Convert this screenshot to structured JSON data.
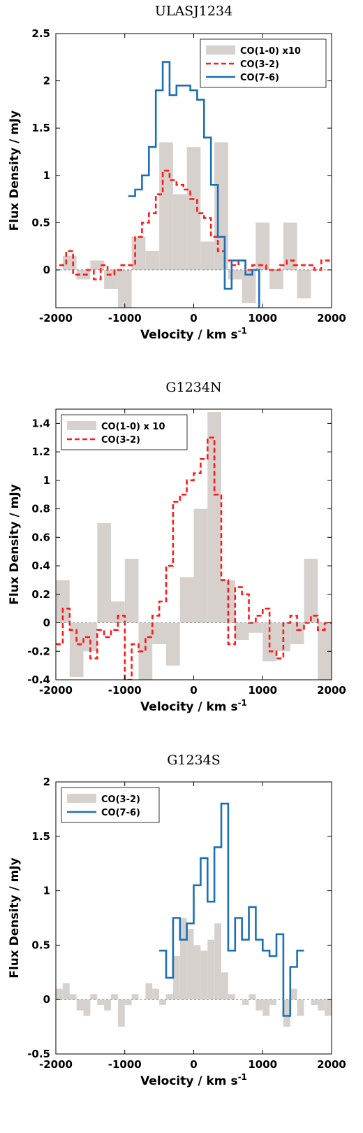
{
  "colors": {
    "fill_series": "#d6d1cc",
    "dashed_series": "#ff1a1a",
    "solid_series": "#1c6fb5",
    "zero_line": "#888888"
  },
  "chart_data": [
    {
      "type": "step",
      "title": "ULASJ1234",
      "xlabel": "Velocity / km s",
      "xlabel_sup": "-1",
      "ylabel": "Flux Density / mJy",
      "xlim": [
        -2000,
        2000
      ],
      "ylim": [
        -0.4,
        2.5
      ],
      "xticks": [
        -2000,
        -1000,
        0,
        1000,
        2000
      ],
      "xtick_labels": [
        "-2000",
        "-1000",
        "0",
        "1000",
        "2000"
      ],
      "yticks": [
        0,
        0.5,
        1,
        1.5,
        2,
        2.5
      ],
      "ytick_labels": [
        "0",
        "0.5",
        "1",
        "1.5",
        "2",
        "2.5"
      ],
      "legend_position": "top-right",
      "series": [
        {
          "name": "CO(1-0) x10",
          "style": "fill",
          "x": [
            -1800,
            -1600,
            -1400,
            -1200,
            -1000,
            -800,
            -600,
            -400,
            -200,
            0,
            200,
            400,
            600,
            800,
            1000,
            1200,
            1400,
            1600,
            1800
          ],
          "y": [
            0.15,
            -0.1,
            0.1,
            -0.2,
            -0.45,
            0.35,
            0.2,
            1.35,
            0.8,
            1.3,
            0.3,
            1.35,
            -0.1,
            -0.35,
            0.5,
            -0.2,
            0.5,
            -0.3,
            0.0
          ]
        },
        {
          "name": "CO(3-2)",
          "style": "dashed",
          "x": [
            -1900,
            -1800,
            -1700,
            -1600,
            -1500,
            -1400,
            -1300,
            -1200,
            -1100,
            -1000,
            -900,
            -800,
            -700,
            -600,
            -500,
            -400,
            -300,
            -200,
            -100,
            0,
            100,
            200,
            300,
            400,
            500,
            600,
            700,
            800,
            900,
            1000,
            1100,
            1200,
            1300,
            1400,
            1500,
            1600,
            1700,
            1800,
            1900,
            2000
          ],
          "y": [
            0.05,
            0.2,
            -0.05,
            -0.05,
            0.0,
            -0.1,
            0.05,
            -0.05,
            0.0,
            0.05,
            0.05,
            0.35,
            0.5,
            0.6,
            0.8,
            1.05,
            0.95,
            0.9,
            0.85,
            0.75,
            0.6,
            0.55,
            0.35,
            0.2,
            0.1,
            0.05,
            0.1,
            0.0,
            0.05,
            0.05,
            0.0,
            0.0,
            0.05,
            0.1,
            0.05,
            0.05,
            0.05,
            0.0,
            0.1,
            0.1
          ]
        },
        {
          "name": "CO(7-6)",
          "style": "solid",
          "x": [
            -900,
            -800,
            -700,
            -600,
            -500,
            -400,
            -300,
            -200,
            -100,
            0,
            100,
            200,
            300,
            400,
            500,
            600,
            700,
            800,
            900,
            1000
          ],
          "y": [
            0.78,
            0.85,
            1.0,
            1.3,
            1.9,
            2.2,
            1.85,
            1.95,
            1.95,
            1.9,
            1.8,
            1.4,
            0.9,
            0.35,
            -0.2,
            0.1,
            0.1,
            -0.05,
            0.0,
            -0.45
          ]
        }
      ]
    },
    {
      "type": "step",
      "title": "G1234N",
      "xlabel": "Velocity / km s",
      "xlabel_sup": "-1",
      "ylabel": "Flux Density / mJy",
      "xlim": [
        -2000,
        2000
      ],
      "ylim": [
        -0.4,
        1.5
      ],
      "xticks": [
        -2000,
        -1000,
        0,
        1000,
        2000
      ],
      "xtick_labels": [
        "-2000",
        "-1000",
        "0",
        "1000",
        "2000"
      ],
      "yticks": [
        -0.4,
        -0.2,
        0,
        0.2,
        0.4,
        0.6,
        0.8,
        1,
        1.2,
        1.4
      ],
      "ytick_labels": [
        "-0.4",
        "-0.2",
        "0",
        "0.2",
        "0.4",
        "0.6",
        "0.8",
        "1",
        "1.2",
        "1.4"
      ],
      "legend_position": "top-left",
      "series": [
        {
          "name": "CO(1-0) x 10",
          "style": "fill",
          "x": [
            -1900,
            -1700,
            -1500,
            -1300,
            -1100,
            -900,
            -700,
            -500,
            -300,
            -100,
            100,
            300,
            500,
            700,
            900,
            1100,
            1300,
            1500,
            1700,
            1900
          ],
          "y": [
            0.3,
            -0.38,
            -0.2,
            0.7,
            0.15,
            0.45,
            -0.4,
            -0.15,
            -0.3,
            0.32,
            0.8,
            1.48,
            0.3,
            -0.12,
            -0.07,
            -0.27,
            -0.2,
            -0.15,
            0.45,
            -0.4
          ]
        },
        {
          "name": "CO(3-2)",
          "style": "dashed",
          "x": [
            -1950,
            -1850,
            -1750,
            -1650,
            -1550,
            -1450,
            -1350,
            -1250,
            -1150,
            -1050,
            -950,
            -850,
            -750,
            -650,
            -550,
            -450,
            -350,
            -250,
            -150,
            -50,
            50,
            150,
            250,
            350,
            450,
            550,
            650,
            750,
            850,
            950,
            1050,
            1150,
            1250,
            1350,
            1450,
            1550,
            1650,
            1750,
            1850,
            1950
          ],
          "y": [
            -0.15,
            0.1,
            -0.05,
            -0.15,
            -0.1,
            -0.25,
            -0.05,
            -0.1,
            -0.05,
            0.05,
            -0.4,
            -0.15,
            -0.2,
            -0.1,
            0.05,
            0.15,
            0.4,
            0.85,
            0.9,
            1.0,
            1.05,
            1.15,
            1.3,
            0.9,
            0.3,
            -0.15,
            0.25,
            0.2,
            0.0,
            0.05,
            0.1,
            -0.2,
            -0.25,
            0.0,
            0.05,
            -0.05,
            0.0,
            0.05,
            -0.05,
            0.0
          ]
        }
      ]
    },
    {
      "type": "step",
      "title": "G1234S",
      "xlabel": "Velocity / km s",
      "xlabel_sup": "-1",
      "ylabel": "Flux Density / mJy",
      "xlim": [
        -2000,
        2000
      ],
      "ylim": [
        -0.5,
        2.0
      ],
      "xticks": [
        -2000,
        -1000,
        0,
        1000,
        2000
      ],
      "xtick_labels": [
        "-2000",
        "-1000",
        "0",
        "1000",
        "2000"
      ],
      "yticks": [
        -0.5,
        0,
        0.5,
        1,
        1.5,
        2
      ],
      "ytick_labels": [
        "-0.5",
        "0",
        "0.5",
        "1",
        "1.5",
        "2"
      ],
      "legend_position": "top-left",
      "series": [
        {
          "name": "CO(3-2)",
          "style": "fill",
          "x": [
            -1950,
            -1850,
            -1750,
            -1650,
            -1550,
            -1450,
            -1350,
            -1250,
            -1150,
            -1050,
            -950,
            -850,
            -750,
            -650,
            -550,
            -450,
            -350,
            -250,
            -150,
            -50,
            50,
            150,
            250,
            350,
            450,
            550,
            650,
            750,
            850,
            950,
            1050,
            1150,
            1250,
            1350,
            1450,
            1550,
            1650,
            1750,
            1850,
            1950
          ],
          "y": [
            0.1,
            0.15,
            0.05,
            -0.1,
            -0.15,
            0.05,
            -0.05,
            -0.1,
            0.05,
            -0.25,
            -0.05,
            0.05,
            0.0,
            0.15,
            0.1,
            -0.05,
            0.05,
            0.4,
            0.75,
            0.65,
            0.5,
            0.45,
            0.55,
            0.7,
            0.25,
            0.05,
            0.0,
            -0.05,
            0.05,
            -0.1,
            -0.15,
            -0.05,
            0.0,
            -0.25,
            0.1,
            -0.15,
            0.0,
            -0.05,
            -0.1,
            -0.15
          ]
        },
        {
          "name": "CO(7-6)",
          "style": "solid",
          "x": [
            -450,
            -350,
            -250,
            -150,
            -50,
            50,
            150,
            250,
            350,
            450,
            550,
            650,
            750,
            850,
            950,
            1050,
            1150,
            1250,
            1350,
            1450,
            1550
          ],
          "y": [
            0.45,
            0.2,
            0.75,
            0.55,
            0.7,
            1.05,
            1.3,
            0.9,
            1.4,
            1.8,
            0.45,
            0.75,
            0.55,
            0.85,
            0.55,
            0.45,
            0.4,
            0.6,
            -0.15,
            0.3,
            0.45
          ]
        }
      ]
    }
  ]
}
